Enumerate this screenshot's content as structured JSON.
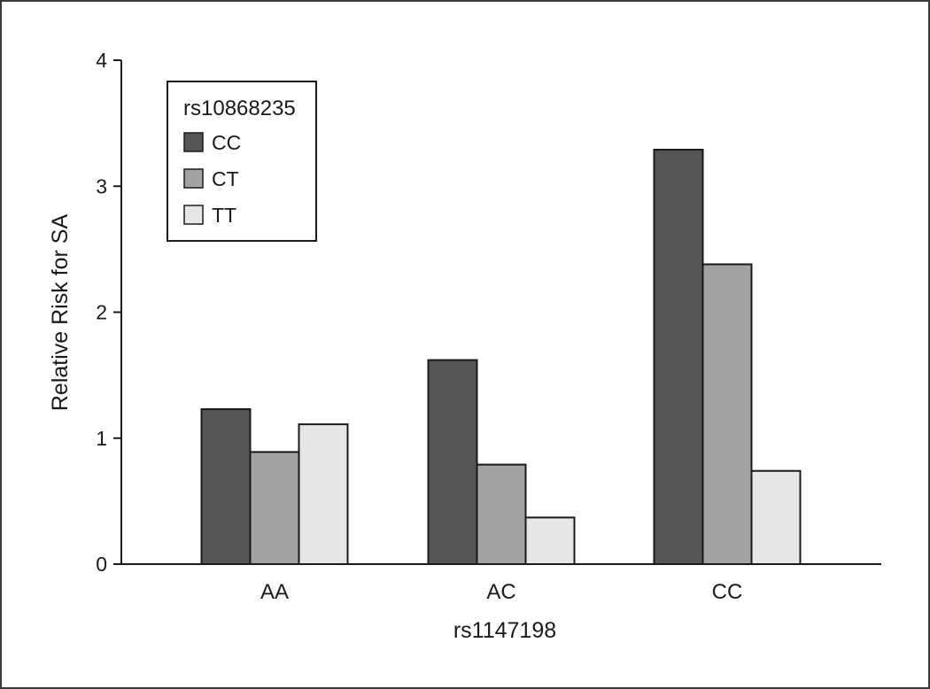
{
  "chart_data": {
    "type": "bar",
    "title": "",
    "xlabel": "rs1147198",
    "ylabel": "Relative Risk for SA",
    "categories": [
      "AA",
      "AC",
      "CC"
    ],
    "ylim": [
      0,
      4
    ],
    "yticks": [
      0,
      1,
      2,
      3,
      4
    ],
    "grid": false,
    "legend": {
      "title": "rs10868235",
      "position": "top-left"
    },
    "series": [
      {
        "name": "CC",
        "color": "#545557",
        "values": [
          1.23,
          1.62,
          3.29
        ]
      },
      {
        "name": "CT",
        "color": "#a2a3a5",
        "values": [
          0.89,
          0.79,
          2.38
        ]
      },
      {
        "name": "TT",
        "color": "#e6e7e8",
        "values": [
          1.11,
          0.37,
          0.74
        ]
      }
    ]
  }
}
